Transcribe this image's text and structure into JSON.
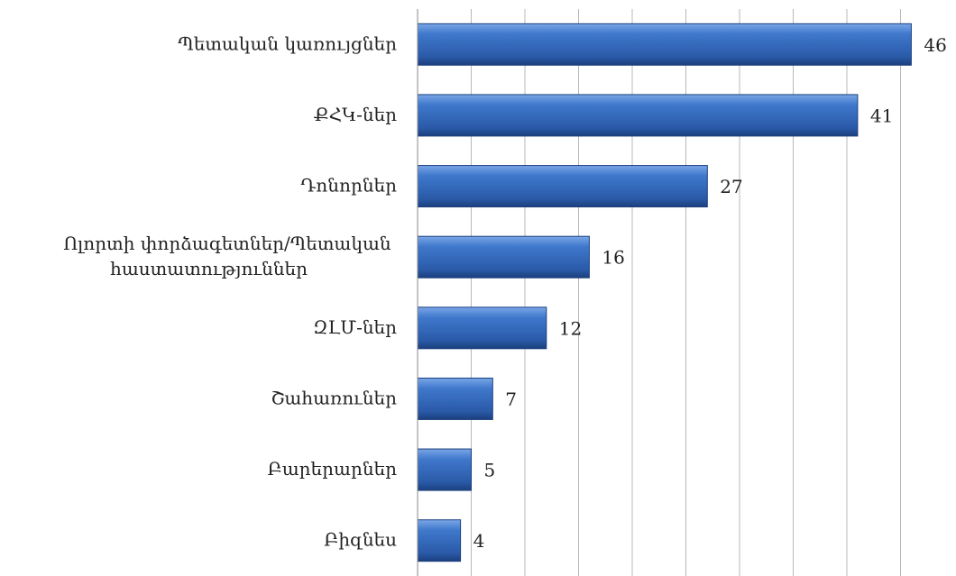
{
  "chart_data": {
    "type": "hbar",
    "categories": [
      "Պետական կառույցներ",
      "ՔՀԿ-ներ",
      "Դոնորներ",
      "Ոլորտի փորձագետներ/Պետական \nհաստատություններ",
      "ԶԼՄ-ներ",
      "Շահառուներ",
      "Բարերարներ",
      "Բիզնես"
    ],
    "values": [
      46,
      41,
      27,
      16,
      12,
      7,
      5,
      4
    ],
    "color": "#2e64b4",
    "xlim": [
      0,
      50
    ],
    "xticks": [
      0,
      5,
      10,
      15,
      20,
      25,
      30,
      35,
      40,
      45
    ],
    "grid": true
  }
}
